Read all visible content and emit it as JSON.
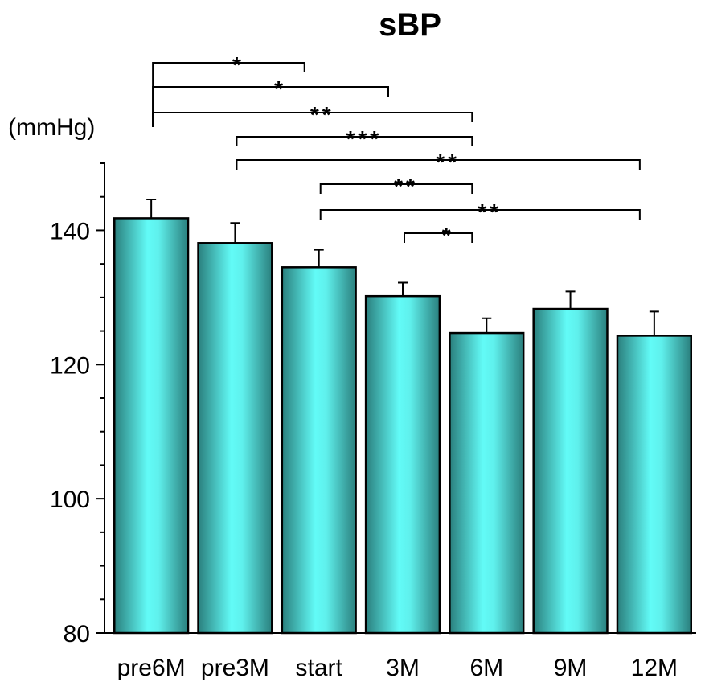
{
  "chart_data": {
    "type": "bar",
    "title": "sBP",
    "ylabel": "(mmHg)",
    "xlabel": "",
    "categories": [
      "pre6M",
      "pre3M",
      "start",
      "3M",
      "6M",
      "9M",
      "12M"
    ],
    "values": [
      141.8,
      138.1,
      134.5,
      130.2,
      124.7,
      128.3,
      124.3
    ],
    "errors": [
      2.8,
      3.0,
      2.6,
      2.0,
      2.2,
      2.6,
      3.6
    ],
    "ylim": [
      80,
      150
    ],
    "yticks": [
      80,
      100,
      120,
      140
    ],
    "grid": false,
    "bar_color": "#5ff0ec",
    "bar_edge_color": "#2f8a8a",
    "significance": [
      {
        "from": 0,
        "to": 2,
        "label": "*"
      },
      {
        "from": 0,
        "to": 3,
        "label": "*"
      },
      {
        "from": 0,
        "to": 4,
        "label": "**"
      },
      {
        "from": 1,
        "to": 4,
        "label": "***"
      },
      {
        "from": 1,
        "to": 6,
        "label": "**"
      },
      {
        "from": 2,
        "to": 4,
        "label": "**"
      },
      {
        "from": 2,
        "to": 6,
        "label": "**"
      },
      {
        "from": 3,
        "to": 4,
        "label": "*"
      }
    ]
  }
}
